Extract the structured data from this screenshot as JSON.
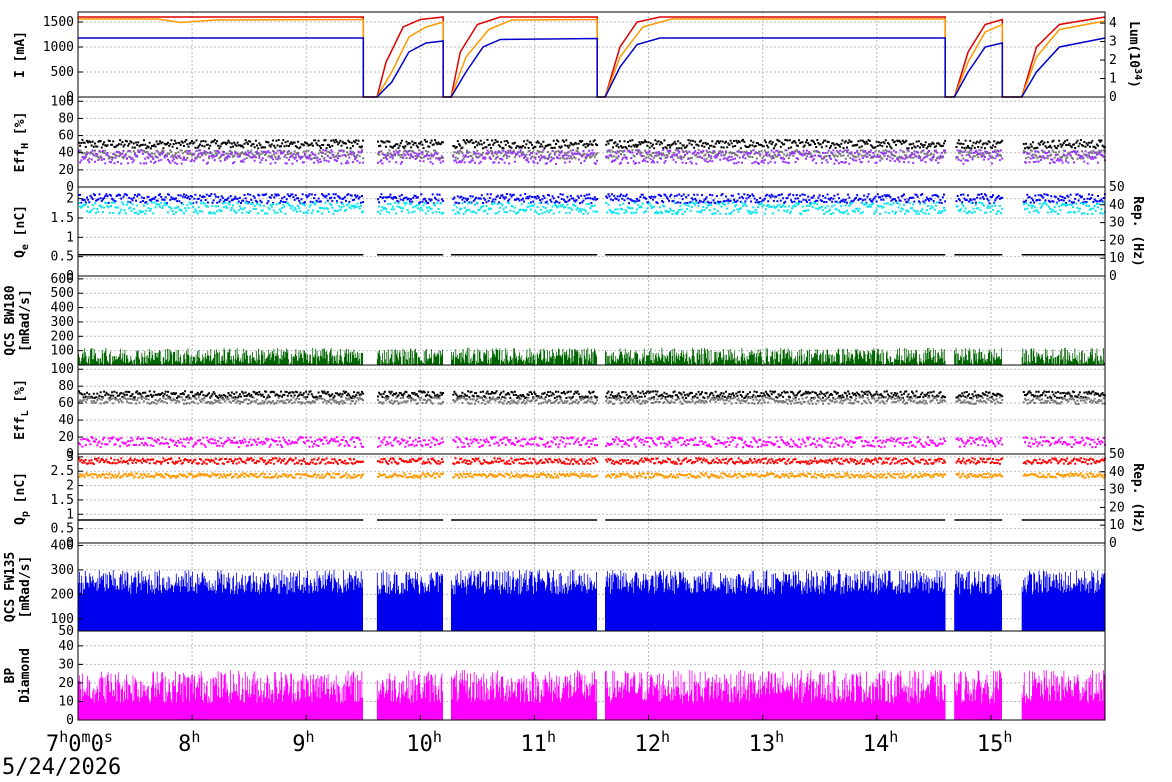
{
  "date_label": "5/24/2026",
  "chart_data": {
    "type": "line",
    "x_axis": {
      "ticks": [
        {
          "h": "7",
          "m": "0",
          "s": "0"
        },
        {
          "h": "8"
        },
        {
          "h": "9"
        },
        {
          "h": "10"
        },
        {
          "h": "11"
        },
        {
          "h": "12"
        },
        {
          "h": "13"
        },
        {
          "h": "14"
        },
        {
          "h": "15"
        }
      ],
      "hour_unit": "h",
      "minute_unit": "m",
      "second_unit": "s",
      "range_hours": [
        7.0,
        16.0
      ]
    },
    "beam_gaps_hours": [
      [
        9.5,
        9.62
      ],
      [
        10.2,
        10.27
      ],
      [
        11.55,
        11.62
      ],
      [
        14.6,
        14.68
      ],
      [
        15.1,
        15.27
      ]
    ],
    "panels": [
      {
        "id": "current",
        "ylabel_left": "I [mA]",
        "ylabel_right": "Lum(10^34)",
        "ylabel_right_base": "Lum(10",
        "ylabel_right_sup": "34",
        "ylabel_right_end": ")",
        "ylim_left": [
          0,
          1700
        ],
        "ticks_left": [
          "0",
          "500",
          "1000",
          "1500"
        ],
        "ylim_right": [
          0,
          4.6
        ],
        "ticks_right": [
          "0",
          "1",
          "2",
          "3",
          "4"
        ],
        "series": [
          {
            "color": "#dd0000",
            "points": [
              [
                7.0,
                1600
              ],
              [
                9.5,
                1600
              ],
              [
                9.5,
                0
              ],
              [
                9.62,
                0
              ],
              [
                9.7,
                700
              ],
              [
                9.85,
                1400
              ],
              [
                10.0,
                1550
              ],
              [
                10.2,
                1600
              ],
              [
                10.2,
                0
              ],
              [
                10.27,
                0
              ],
              [
                10.35,
                900
              ],
              [
                10.5,
                1450
              ],
              [
                10.7,
                1600
              ],
              [
                11.55,
                1600
              ],
              [
                11.55,
                0
              ],
              [
                11.62,
                0
              ],
              [
                11.75,
                1000
              ],
              [
                11.9,
                1500
              ],
              [
                12.1,
                1600
              ],
              [
                14.6,
                1600
              ],
              [
                14.6,
                0
              ],
              [
                14.68,
                0
              ],
              [
                14.8,
                900
              ],
              [
                14.95,
                1450
              ],
              [
                15.1,
                1550
              ],
              [
                15.1,
                0
              ],
              [
                15.27,
                0
              ],
              [
                15.4,
                1000
              ],
              [
                15.6,
                1450
              ],
              [
                16.0,
                1600
              ]
            ]
          },
          {
            "color": "#ff9900",
            "points": [
              [
                7.0,
                1560
              ],
              [
                7.7,
                1560
              ],
              [
                7.9,
                1490
              ],
              [
                8.2,
                1540
              ],
              [
                9.5,
                1550
              ],
              [
                9.5,
                0
              ],
              [
                9.62,
                0
              ],
              [
                9.75,
                500
              ],
              [
                9.9,
                1200
              ],
              [
                10.05,
                1400
              ],
              [
                10.2,
                1500
              ],
              [
                10.2,
                0
              ],
              [
                10.27,
                0
              ],
              [
                10.4,
                800
              ],
              [
                10.6,
                1350
              ],
              [
                10.8,
                1540
              ],
              [
                11.55,
                1550
              ],
              [
                11.55,
                0
              ],
              [
                11.62,
                0
              ],
              [
                11.75,
                800
              ],
              [
                11.95,
                1400
              ],
              [
                12.2,
                1560
              ],
              [
                14.6,
                1560
              ],
              [
                14.6,
                0
              ],
              [
                14.68,
                0
              ],
              [
                14.8,
                700
              ],
              [
                14.95,
                1300
              ],
              [
                15.1,
                1450
              ],
              [
                15.1,
                0
              ],
              [
                15.27,
                0
              ],
              [
                15.4,
                800
              ],
              [
                15.6,
                1350
              ],
              [
                16.0,
                1520
              ]
            ]
          },
          {
            "color": "#0000cc",
            "points": [
              [
                7.0,
                1180
              ],
              [
                9.5,
                1180
              ],
              [
                9.5,
                0
              ],
              [
                9.62,
                0
              ],
              [
                9.75,
                300
              ],
              [
                9.9,
                900
              ],
              [
                10.05,
                1080
              ],
              [
                10.2,
                1120
              ],
              [
                10.2,
                0
              ],
              [
                10.27,
                0
              ],
              [
                10.4,
                500
              ],
              [
                10.55,
                1000
              ],
              [
                10.7,
                1150
              ],
              [
                11.55,
                1170
              ],
              [
                11.55,
                0
              ],
              [
                11.62,
                0
              ],
              [
                11.75,
                600
              ],
              [
                11.9,
                1050
              ],
              [
                12.1,
                1180
              ],
              [
                14.6,
                1180
              ],
              [
                14.6,
                0
              ],
              [
                14.68,
                0
              ],
              [
                14.8,
                500
              ],
              [
                14.95,
                1000
              ],
              [
                15.1,
                1080
              ],
              [
                15.1,
                0
              ],
              [
                15.27,
                0
              ],
              [
                15.4,
                500
              ],
              [
                15.6,
                1000
              ],
              [
                16.0,
                1180
              ]
            ]
          }
        ]
      },
      {
        "id": "effh",
        "ylabel_left": "EffH [%]",
        "ylabel_left_base": "Eff",
        "ylabel_left_sub": "H",
        "ylabel_left_end": " [%]",
        "ylim_left": [
          0,
          105
        ],
        "ticks_left": [
          "0",
          "20",
          "40",
          "60",
          "80",
          "100"
        ],
        "series": [
          {
            "color": "#000000",
            "kind": "dots",
            "level": 50,
            "spread": 5
          },
          {
            "color": "#777777",
            "kind": "dots",
            "level": 38,
            "spread": 5
          },
          {
            "color": "#9933ff",
            "kind": "dots",
            "level": 35,
            "spread": 8
          }
        ]
      },
      {
        "id": "qe",
        "ylabel_left": "Qe [nC]",
        "ylabel_left_base": "Q",
        "ylabel_left_sub": "e",
        "ylabel_left_end": " [nC]",
        "ylabel_right": "Rep. (Hz)",
        "ylim_left": [
          0,
          2.3
        ],
        "ticks_left": [
          "0",
          "0.5",
          "1",
          "1.5",
          "2"
        ],
        "ylim_right": [
          0,
          50
        ],
        "ticks_right": [
          "0",
          "10",
          "20",
          "30",
          "40",
          "50"
        ],
        "series": [
          {
            "color": "#0000ff",
            "kind": "dots",
            "level": 2.0,
            "spread": 0.12
          },
          {
            "color": "#00e5ee",
            "kind": "dots",
            "level": 1.75,
            "spread": 0.15
          },
          {
            "color": "#000000",
            "kind": "step",
            "level": 0.55
          }
        ]
      },
      {
        "id": "bw180",
        "ylabel_left": "QCS BW180",
        "ylabel_left2": "[mRad/s]",
        "ylim_left": [
          0,
          620
        ],
        "ticks_left": [
          "100",
          "200",
          "300",
          "400",
          "500",
          "600"
        ],
        "series": [
          {
            "color": "#006600",
            "kind": "noise",
            "level": 60,
            "spread": 60
          }
        ]
      },
      {
        "id": "effl",
        "ylabel_left": "EffL [%]",
        "ylabel_left_base": "Eff",
        "ylabel_left_sub": "L",
        "ylabel_left_end": " [%]",
        "ylim_left": [
          0,
          105
        ],
        "ticks_left": [
          "0",
          "20",
          "40",
          "60",
          "80",
          "100"
        ],
        "series": [
          {
            "color": "#000000",
            "kind": "dots",
            "level": 70,
            "spread": 4
          },
          {
            "color": "#777777",
            "kind": "dots",
            "level": 63,
            "spread": 4
          },
          {
            "color": "#ff00ff",
            "kind": "dots",
            "level": 14,
            "spread": 6
          }
        ]
      },
      {
        "id": "qp",
        "ylabel_left": "Qp [nC]",
        "ylabel_left_base": "Q",
        "ylabel_left_sub": "p",
        "ylabel_left_end": " [nC]",
        "ylabel_right": "Rep. (Hz)",
        "ylim_left": [
          0,
          3.1
        ],
        "ticks_left": [
          "0",
          "0.5",
          "1",
          "1.5",
          "2",
          "2.5",
          "3"
        ],
        "ylim_right": [
          0,
          50
        ],
        "ticks_right": [
          "0",
          "10",
          "20",
          "30",
          "40",
          "50"
        ],
        "series": [
          {
            "color": "#ff0000",
            "kind": "dots",
            "level": 2.85,
            "spread": 0.1
          },
          {
            "color": "#ff9900",
            "kind": "dots",
            "level": 2.35,
            "spread": 0.08
          },
          {
            "color": "#000000",
            "kind": "step",
            "level": 0.8
          }
        ]
      },
      {
        "id": "fw135",
        "ylabel_left": "QCS FW135",
        "ylabel_left2": "[mRad/s]",
        "ylim_left": [
          50,
          410
        ],
        "ticks_left": [
          "50",
          "100",
          "200",
          "300",
          "400"
        ],
        "series": [
          {
            "color": "#0000ee",
            "kind": "noise",
            "level": 250,
            "spread": 50
          }
        ]
      },
      {
        "id": "diamond",
        "ylabel_left": "BP",
        "ylabel_left2": "Diamond",
        "ylim_left": [
          0,
          48
        ],
        "ticks_left": [
          "0",
          "10",
          "20",
          "30",
          "40"
        ],
        "series": [
          {
            "color": "#ff00ff",
            "kind": "noise",
            "level": 18,
            "spread": 9
          }
        ]
      }
    ]
  }
}
